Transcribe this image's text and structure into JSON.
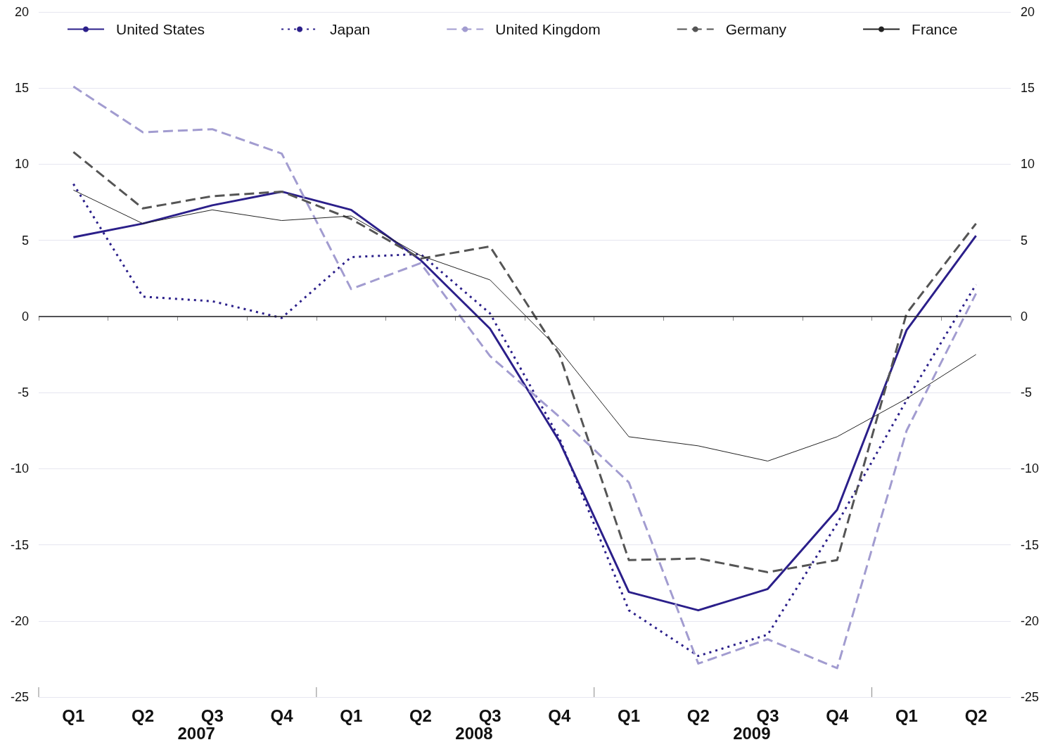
{
  "chart_data": {
    "type": "line",
    "categories": [
      "Q1",
      "Q2",
      "Q3",
      "Q4",
      "Q1",
      "Q2",
      "Q3",
      "Q4",
      "Q1",
      "Q2",
      "Q3",
      "Q4",
      "Q1",
      "Q2"
    ],
    "series": [
      {
        "name": "United States",
        "color": "#2b1f8a",
        "line_style": "solid",
        "values": [
          5.2,
          6.1,
          7.3,
          8.2,
          7.0,
          3.7,
          -0.8,
          -8.2,
          -18.1,
          -19.3,
          -17.9,
          -12.7,
          -0.9,
          5.3
        ]
      },
      {
        "name": "Japan",
        "color": "#2b1f8a",
        "line_style": "dotted",
        "values": [
          8.7,
          1.3,
          1.0,
          -0.1,
          3.9,
          4.1,
          0.2,
          -8.0,
          -19.3,
          -22.3,
          -20.9,
          -13.6,
          -5.5,
          2.1
        ]
      },
      {
        "name": "United Kingdom",
        "color": "#a29cd0",
        "line_style": "dashed",
        "values": [
          15.1,
          12.1,
          12.3,
          10.7,
          1.8,
          3.5,
          -2.6,
          -6.6,
          -10.9,
          -22.8,
          -21.2,
          -23.1,
          -7.5,
          1.5
        ]
      },
      {
        "name": "Germany",
        "color": "#555555",
        "line_style": "dashed",
        "values": [
          10.8,
          7.1,
          7.9,
          8.2,
          6.4,
          3.8,
          4.6,
          -2.5,
          -16.0,
          -15.9,
          -16.8,
          -16.0,
          0.2,
          6.1
        ]
      },
      {
        "name": "France",
        "color": "#222222",
        "line_style": "solid",
        "values": [
          8.3,
          6.1,
          7.0,
          6.3,
          6.6,
          4.0,
          2.4,
          -2.2,
          -7.9,
          -8.5,
          -9.5,
          -7.9,
          -5.4,
          -2.5
        ]
      }
    ],
    "ylim": [
      -25,
      20
    ],
    "yticks": [
      -25,
      -20,
      -15,
      -10,
      -5,
      0,
      5,
      10,
      15,
      20
    ],
    "y2lim": [
      -25,
      20
    ],
    "y2ticks": [
      -25,
      -20,
      -15,
      -10,
      -5,
      0,
      5,
      10,
      15,
      20
    ],
    "ref_lines": [
      {
        "axis": "y",
        "value": 0,
        "color": "#222222"
      }
    ],
    "annotations": [
      "2007",
      "2008",
      "2009"
    ],
    "grid": "y",
    "legend": "top",
    "marker": "none"
  }
}
